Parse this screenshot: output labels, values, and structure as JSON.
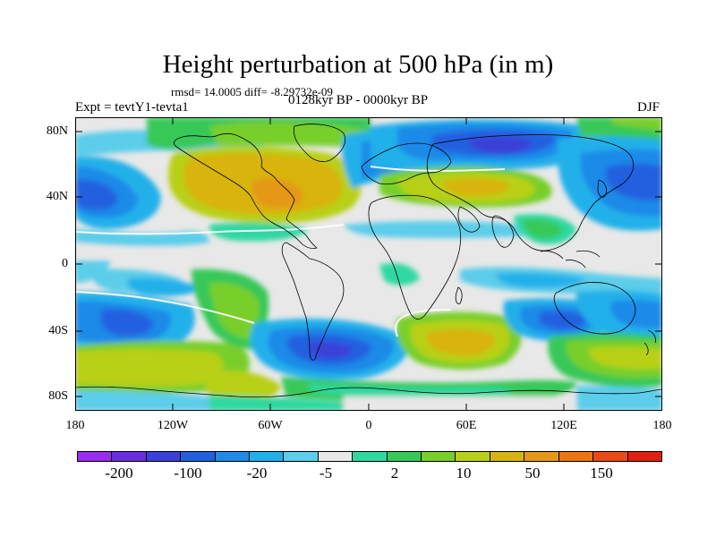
{
  "title": "Height perturbation at 500 hPa (in m)",
  "stats": "rmsd= 14.0005 diff= -8.29732e-09",
  "period": "0128kyr BP - 0000kyr BP",
  "expt": "Expt = tevtY1-tevta1",
  "season": "DJF",
  "map": {
    "lat_labels": [
      "80N",
      "40N",
      "0",
      "40S",
      "80S"
    ],
    "lon_labels": [
      "180",
      "120W",
      "60W",
      "0",
      "60E",
      "120E",
      "180"
    ]
  },
  "colorbar": {
    "colors": [
      "#9a2cf0",
      "#6a2ee0",
      "#3a40d8",
      "#2060e0",
      "#1f8ae8",
      "#22b0ea",
      "#5ccdea",
      "#e8e8e8",
      "#2ed8a0",
      "#38c858",
      "#78cf2c",
      "#b8d018",
      "#d8b410",
      "#e49818",
      "#ec7412",
      "#ea4a18",
      "#e02010"
    ],
    "labels": [
      "-200",
      "-100",
      "-20",
      "-5",
      "2",
      "10",
      "50",
      "150"
    ]
  }
}
